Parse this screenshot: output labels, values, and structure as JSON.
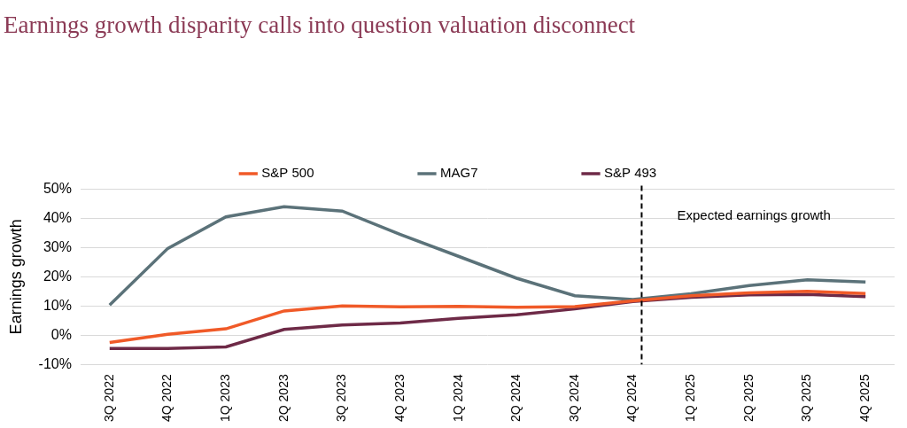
{
  "chart_data": {
    "type": "line",
    "title": "Earnings growth disparity calls into question valuation disconnect",
    "y_label": "Earnings growth",
    "categories": [
      "3Q 2022",
      "4Q 2022",
      "1Q 2023",
      "2Q 2023",
      "3Q 2023",
      "4Q 2023",
      "1Q 2024",
      "2Q 2024",
      "3Q 2024",
      "4Q 2024",
      "1Q 2025",
      "2Q 2025",
      "3Q 2025",
      "4Q 2025"
    ],
    "series": [
      {
        "name": "S&P 500",
        "color": "#f05a28",
        "values": [
          -2.5,
          0.3,
          2.2,
          8.3,
          10,
          9.7,
          9.9,
          9.6,
          9.8,
          11.8,
          13.5,
          14.5,
          15,
          14.3
        ]
      },
      {
        "name": "MAG7",
        "color": "#5b7279",
        "values": [
          10.3,
          29.7,
          40.5,
          44,
          42.5,
          34.5,
          27,
          19.5,
          13.5,
          12.2,
          14.2,
          17,
          19,
          18.2
        ]
      },
      {
        "name": "S&P 493",
        "color": "#6e2a47",
        "values": [
          -4.5,
          -4.5,
          -4,
          2,
          3.5,
          4.2,
          5.8,
          7,
          9,
          11.5,
          13,
          13.8,
          14,
          13.2
        ]
      }
    ],
    "ylim": [
      -10,
      50
    ],
    "yticks": [
      {
        "value": -10,
        "label": "-10%"
      },
      {
        "value": 0,
        "label": "0%"
      },
      {
        "value": 10,
        "label": "10%"
      },
      {
        "value": 20,
        "label": "20%"
      },
      {
        "value": 30,
        "label": "30%"
      },
      {
        "value": 40,
        "label": "40%"
      },
      {
        "value": 50,
        "label": "50%"
      }
    ],
    "grid": true,
    "legend": "top",
    "annotations": [
      {
        "text": "Expected earnings growth",
        "after": "4Q 2024"
      }
    ]
  }
}
